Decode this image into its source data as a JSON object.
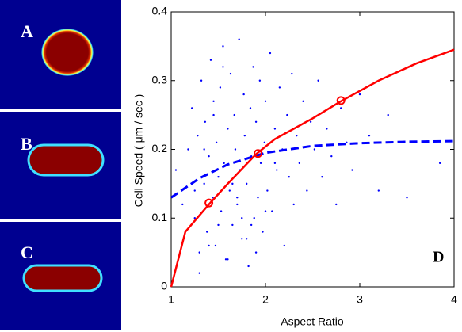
{
  "chart_data": {
    "type": "scatter",
    "panel_labels": [
      "A",
      "B",
      "C"
    ],
    "annotation": "D",
    "xlabel": "Aspect Ratio",
    "ylabel": "Cell Speed ( μm / sec )",
    "xlim": [
      1,
      4
    ],
    "ylim": [
      0,
      0.4
    ],
    "xticks": [
      1,
      2,
      3,
      4
    ],
    "yticks": [
      0,
      0.1,
      0.2,
      0.3,
      0.4
    ],
    "series": [
      {
        "style": "dots",
        "color": "#0000ff",
        "x": [
          1.05,
          1.12,
          1.18,
          1.22,
          1.25,
          1.28,
          1.3,
          1.32,
          1.35,
          1.36,
          1.38,
          1.4,
          1.42,
          1.44,
          1.45,
          1.47,
          1.48,
          1.5,
          1.52,
          1.53,
          1.55,
          1.56,
          1.58,
          1.6,
          1.62,
          1.63,
          1.65,
          1.67,
          1.68,
          1.7,
          1.72,
          1.73,
          1.75,
          1.77,
          1.78,
          1.8,
          1.82,
          1.84,
          1.85,
          1.87,
          1.88,
          1.9,
          1.92,
          1.94,
          1.95,
          1.97,
          1.99,
          2.0,
          2.02,
          2.05,
          2.07,
          2.1,
          2.12,
          2.15,
          2.18,
          2.2,
          2.23,
          2.25,
          2.28,
          2.3,
          2.33,
          2.36,
          2.4,
          2.44,
          2.48,
          2.52,
          2.56,
          2.6,
          2.65,
          2.7,
          2.75,
          2.8,
          2.86,
          2.92,
          3.0,
          3.1,
          3.2,
          3.3,
          3.5,
          3.85,
          1.3,
          1.4,
          1.5,
          1.6,
          1.7,
          1.8,
          1.9,
          2.0,
          1.45,
          1.55,
          1.65,
          1.75,
          1.35,
          1.25,
          1.85,
          2.1
        ],
        "values": [
          0.17,
          0.12,
          0.2,
          0.26,
          0.1,
          0.22,
          0.05,
          0.3,
          0.15,
          0.24,
          0.08,
          0.19,
          0.33,
          0.13,
          0.27,
          0.06,
          0.21,
          0.16,
          0.29,
          0.11,
          0.35,
          0.18,
          0.04,
          0.23,
          0.14,
          0.31,
          0.09,
          0.25,
          0.2,
          0.12,
          0.36,
          0.17,
          0.07,
          0.28,
          0.22,
          0.15,
          0.03,
          0.26,
          0.19,
          0.32,
          0.1,
          0.24,
          0.13,
          0.3,
          0.18,
          0.08,
          0.21,
          0.27,
          0.14,
          0.34,
          0.11,
          0.23,
          0.17,
          0.29,
          0.2,
          0.06,
          0.25,
          0.16,
          0.31,
          0.12,
          0.22,
          0.18,
          0.27,
          0.14,
          0.24,
          0.2,
          0.3,
          0.16,
          0.23,
          0.19,
          0.12,
          0.26,
          0.21,
          0.17,
          0.28,
          0.22,
          0.14,
          0.25,
          0.13,
          0.18,
          0.02,
          0.06,
          0.09,
          0.04,
          0.13,
          0.07,
          0.05,
          0.11,
          0.25,
          0.32,
          0.15,
          0.1,
          0.2,
          0.14,
          0.09,
          0.18
        ]
      },
      {
        "style": "dashed",
        "color": "#0000ff",
        "x": [
          1,
          1.3,
          1.6,
          2,
          2.5,
          3,
          3.5,
          4
        ],
        "values": [
          0.13,
          0.158,
          0.178,
          0.195,
          0.205,
          0.209,
          0.211,
          0.212
        ]
      },
      {
        "style": "solid",
        "color": "#ff0000",
        "x": [
          1,
          1.15,
          1.4,
          1.6,
          1.9,
          2.1,
          2.5,
          2.8,
          3.2,
          3.6,
          4
        ],
        "values": [
          0,
          0.08,
          0.12,
          0.15,
          0.193,
          0.215,
          0.245,
          0.27,
          0.3,
          0.325,
          0.345
        ]
      },
      {
        "style": "circles",
        "color": "#ff0000",
        "x": [
          1.4,
          1.92,
          2.8
        ],
        "values": [
          0.122,
          0.194,
          0.271
        ]
      }
    ]
  }
}
